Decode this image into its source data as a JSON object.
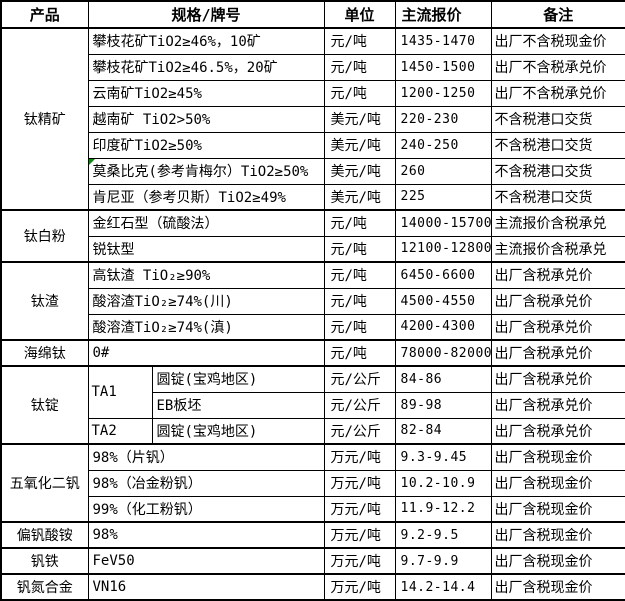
{
  "colors": {
    "border": "#000000",
    "background": "#ffffff",
    "text": "#000000",
    "comment_flag_green": "#0a8a0a"
  },
  "chart_data": {
    "type": "table",
    "columns": [
      "产品",
      "规格/牌号",
      "单位",
      "主流报价",
      "备注"
    ],
    "groups": [
      {
        "product": "钛精矿",
        "rows": [
          {
            "spec": "攀枝花矿TiO2≥46%，10矿",
            "unit": "元/吨",
            "price": "1435-1470",
            "note": "出厂不含税现金价"
          },
          {
            "spec": "攀枝花矿TiO2≥46.5%，20矿",
            "unit": "元/吨",
            "price": "1450-1500",
            "note": "出厂不含税承兑价"
          },
          {
            "spec": "云南矿TiO2≥45%",
            "unit": "元/吨",
            "price": "1200-1250",
            "note": "出厂不含税承兑价"
          },
          {
            "spec": "越南矿 TiO2>50%",
            "unit": "美元/吨",
            "price": "220-230",
            "note": "不含税港口交货"
          },
          {
            "spec": "印度矿TiO2≥50%",
            "unit": "美元/吨",
            "price": "240-250",
            "note": "不含税港口交货"
          },
          {
            "spec": "莫桑比克(参考肯梅尔）TiO2≥50%",
            "unit": "美元/吨",
            "price": "260",
            "note": "不含税港口交货",
            "comment_flag": true
          },
          {
            "spec": "肯尼亚（参考贝斯）TiO2≥49%",
            "unit": "美元/吨",
            "price": "225",
            "note": "不含税港口交货"
          }
        ]
      },
      {
        "product": "钛白粉",
        "rows": [
          {
            "spec": "金红石型（硫酸法）",
            "unit": "元/吨",
            "price": "14000-15700",
            "note": "主流报价含税承兑"
          },
          {
            "spec": "锐钛型",
            "unit": "元/吨",
            "price": "12100-12800",
            "note": "主流报价含税承兑"
          }
        ]
      },
      {
        "product": "钛渣",
        "rows": [
          {
            "spec": "高钛渣 TiO₂≥90%",
            "unit": "元/吨",
            "price": "6450-6600",
            "note": "出厂含税承兑价"
          },
          {
            "spec": "酸溶渣TiO₂≥74%(川)",
            "unit": "元/吨",
            "price": "4500-4550",
            "note": "出厂含税承兑价"
          },
          {
            "spec": "酸溶渣TiO₂≥74%(滇)",
            "unit": "元/吨",
            "price": "4200-4300",
            "note": "出厂含税承兑价"
          }
        ]
      },
      {
        "product": "海绵钛",
        "rows": [
          {
            "spec": "0#",
            "unit": "元/吨",
            "price": "78000-82000",
            "note": "出厂含税承兑价"
          }
        ]
      },
      {
        "product": "钛锭",
        "split_spec": true,
        "rows": [
          {
            "grade": "TA1",
            "grade_rowspan": 2,
            "spec": "圆锭(宝鸡地区)",
            "unit": "元/公斤",
            "price": "84-86",
            "note": "出厂含税承兑价"
          },
          {
            "spec": "EB板坯",
            "unit": "元/公斤",
            "price": "89-98",
            "note": "出厂含税承兑价"
          },
          {
            "grade": "TA2",
            "grade_rowspan": 1,
            "spec": "圆锭(宝鸡地区)",
            "unit": "元/公斤",
            "price": "82-84",
            "note": "出厂含税承兑价"
          }
        ]
      },
      {
        "product": "五氧化二钒",
        "rows": [
          {
            "spec": "98%（片钒）",
            "unit": "万元/吨",
            "price": "9.3-9.45",
            "note": "出厂含税现金价"
          },
          {
            "spec": "98%（冶金粉钒）",
            "unit": "万元/吨",
            "price": "10.2-10.9",
            "note": "出厂含税现金价"
          },
          {
            "spec": "99%（化工粉钒）",
            "unit": "万元/吨",
            "price": "11.9-12.2",
            "note": "出厂含税现金价"
          }
        ]
      },
      {
        "product": "偏钒酸铵",
        "rows": [
          {
            "spec": "98%",
            "unit": "万元/吨",
            "price": "9.2-9.5",
            "note": "出厂含税现金价"
          }
        ]
      },
      {
        "product": "钒铁",
        "rows": [
          {
            "spec": "FeV50",
            "unit": "万元/吨",
            "price": "9.7-9.9",
            "note": "出厂含税现金价"
          }
        ]
      },
      {
        "product": "钒氮合金",
        "rows": [
          {
            "spec": "VN16",
            "unit": "万元/吨",
            "price": "14.2-14.4",
            "note": "出厂含税现金价"
          }
        ]
      }
    ]
  }
}
